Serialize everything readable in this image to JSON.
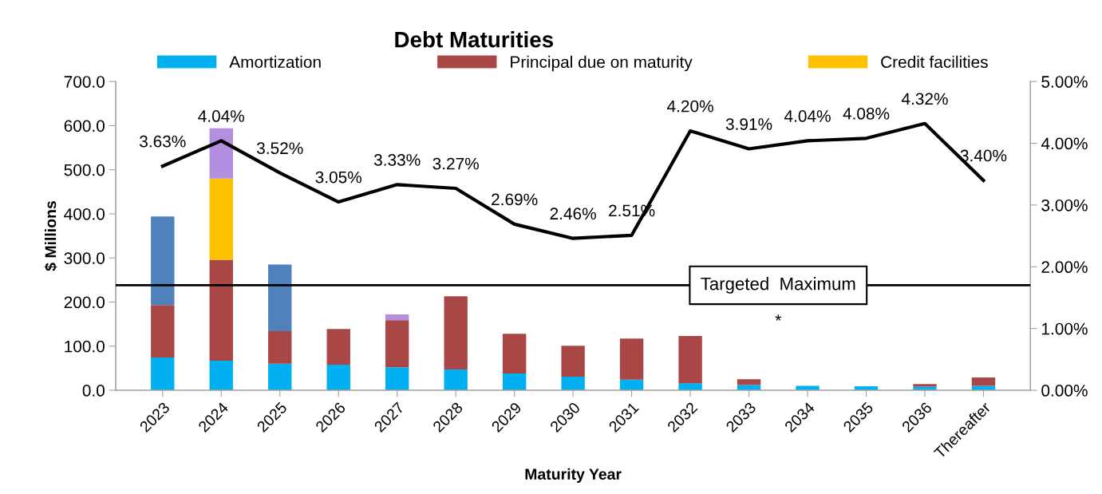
{
  "chart_data": {
    "type": "bar",
    "title": "Debt Maturities",
    "xlabel": "Maturity Year",
    "ylabel": "$ Millions",
    "categories": [
      "2023",
      "2024",
      "2025",
      "2026",
      "2027",
      "2028",
      "2029",
      "2030",
      "2031",
      "2032",
      "2033",
      "2034",
      "2035",
      "2036",
      "Thereafter"
    ],
    "stacked": true,
    "series": [
      {
        "name": "Amortization",
        "color": "#00b0f0",
        "values": [
          74,
          67,
          60,
          58,
          52,
          47,
          38,
          31,
          24,
          16,
          12,
          10,
          9,
          8,
          10
        ]
      },
      {
        "name": "Principal due on maturity",
        "color": "#a94746",
        "values": [
          119,
          229,
          74,
          81,
          107,
          166,
          90,
          70,
          93,
          107,
          13,
          null,
          0,
          6,
          19
        ]
      },
      {
        "name": "Credit facilities",
        "color": "#ffc000",
        "values": [
          0,
          184,
          0,
          0,
          0,
          0,
          0,
          0,
          0,
          0,
          0,
          0,
          0,
          0,
          0
        ]
      },
      {
        "color": "#4f81bd",
        "values": [
          201,
          0,
          151,
          0,
          0,
          0,
          0,
          0,
          0,
          0,
          0,
          0,
          0,
          0,
          0
        ]
      },
      {
        "color": "#b48ee0",
        "values": [
          0,
          114,
          0,
          0,
          13,
          0,
          0,
          0,
          0,
          0,
          0,
          0,
          0,
          0,
          0
        ]
      },
      {
        "type": "line",
        "axis": "y2",
        "color": "#000000",
        "values": [
          3.63,
          4.04,
          3.52,
          3.05,
          3.33,
          3.27,
          2.69,
          2.46,
          2.51,
          4.2,
          3.91,
          4.04,
          4.08,
          4.32,
          3.4
        ],
        "value_labels": [
          "3.63%",
          "4.04%",
          "3.52%",
          "3.05%",
          "3.33%",
          "3.27%",
          "2.69%",
          "2.46%",
          "2.51%",
          "4.20%",
          "3.91%",
          "4.04%",
          "4.08%",
          "4.32%",
          "3.40%"
        ]
      }
    ],
    "ylim": [
      0,
      700
    ],
    "yticks": [
      {
        "value": 0,
        "label": "0.0"
      },
      {
        "value": 100,
        "label": "100.0"
      },
      {
        "value": 200,
        "label": "200.0"
      },
      {
        "value": 300,
        "label": "300.0"
      },
      {
        "value": 400,
        "label": "400.0"
      },
      {
        "value": 500,
        "label": "500.0"
      },
      {
        "value": 600,
        "label": "600.0"
      },
      {
        "value": 700,
        "label": "700.0"
      }
    ],
    "y2lim": [
      0,
      5
    ],
    "y2ticks": [
      {
        "value": 0,
        "label": "0.00%"
      },
      {
        "value": 1,
        "label": "1.00%"
      },
      {
        "value": 2,
        "label": "2.00%"
      },
      {
        "value": 3,
        "label": "3.00%"
      },
      {
        "value": 4,
        "label": "4.00%"
      },
      {
        "value": 5,
        "label": "5.00%"
      }
    ],
    "ref_lines": [
      {
        "axis": "y2",
        "value": 1.7,
        "label": "Targeted  Maximum",
        "color": "#000000"
      }
    ],
    "annotations": [
      "*"
    ],
    "legend": "top",
    "grid": false,
    "marker": "none"
  }
}
